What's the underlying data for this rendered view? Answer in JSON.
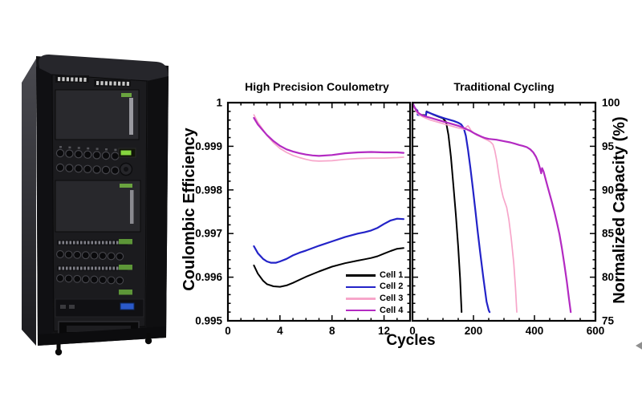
{
  "figure": {
    "background": "#ffffff",
    "shared_xlabel": "Cycles",
    "photo": {
      "name": "battery-cycler-rack-photo"
    }
  },
  "legend": {
    "position": "lower right of left chart"
  },
  "chart_data": [
    {
      "type": "line",
      "title": "High Precision Coulometry",
      "xlabel": "Cycles",
      "ylabel": "Coulombic Efficiency",
      "xlim": [
        0,
        14
      ],
      "ylim": [
        0.995,
        1.0
      ],
      "xticks": [
        0,
        4,
        8,
        12
      ],
      "xtick_labels": [
        "0",
        "4",
        "8",
        "12"
      ],
      "yticks": [
        0.995,
        0.996,
        0.997,
        0.998,
        0.999,
        1
      ],
      "ytick_labels": [
        "0.995",
        "0.996",
        "0.997",
        "0.998",
        "0.999",
        "1"
      ],
      "xminor": 1,
      "yminor": 0.0002,
      "grid": false,
      "y_label_side": "left",
      "legend_position": "lower right",
      "series": [
        {
          "name": "Cell 1",
          "color": "#000000",
          "lw": 2,
          "points": [
            [
              2,
              0.99627
            ],
            [
              2.3,
              0.99608
            ],
            [
              2.7,
              0.99592
            ],
            [
              3,
              0.99584
            ],
            [
              3.5,
              0.99579
            ],
            [
              4,
              0.99578
            ],
            [
              4.5,
              0.99581
            ],
            [
              5,
              0.99587
            ],
            [
              5.5,
              0.99594
            ],
            [
              6,
              0.99601
            ],
            [
              7,
              0.99613
            ],
            [
              8,
              0.99624
            ],
            [
              9,
              0.99632
            ],
            [
              10,
              0.99638
            ],
            [
              10.5,
              0.99641
            ],
            [
              11,
              0.99644
            ],
            [
              11.5,
              0.99648
            ],
            [
              12,
              0.99654
            ],
            [
              12.5,
              0.9966
            ],
            [
              13,
              0.99665
            ],
            [
              13.5,
              0.99667
            ]
          ]
        },
        {
          "name": "Cell 2",
          "color": "#2323c8",
          "lw": 2.2,
          "points": [
            [
              2,
              0.99671
            ],
            [
              2.3,
              0.99655
            ],
            [
              2.7,
              0.99642
            ],
            [
              3,
              0.99636
            ],
            [
              3.3,
              0.99633
            ],
            [
              3.7,
              0.99633
            ],
            [
              4,
              0.99636
            ],
            [
              4.5,
              0.99642
            ],
            [
              5,
              0.9965
            ],
            [
              5.5,
              0.99656
            ],
            [
              6,
              0.99661
            ],
            [
              7,
              0.99672
            ],
            [
              8,
              0.99682
            ],
            [
              9,
              0.99692
            ],
            [
              10,
              0.997
            ],
            [
              10.5,
              0.99703
            ],
            [
              11,
              0.99707
            ],
            [
              11.5,
              0.99713
            ],
            [
              12,
              0.99722
            ],
            [
              12.5,
              0.9973
            ],
            [
              13,
              0.99734
            ],
            [
              13.5,
              0.99733
            ]
          ]
        },
        {
          "name": "Cell 3",
          "color": "#f7a6ca",
          "lw": 1.7,
          "points": [
            [
              2,
              0.99972
            ],
            [
              2.3,
              0.99955
            ],
            [
              2.7,
              0.99938
            ],
            [
              3,
              0.99925
            ],
            [
              3.5,
              0.99908
            ],
            [
              4,
              0.99895
            ],
            [
              4.5,
              0.99886
            ],
            [
              5,
              0.99879
            ],
            [
              5.5,
              0.99874
            ],
            [
              6,
              0.9987
            ],
            [
              6.5,
              0.99867
            ],
            [
              7,
              0.99866
            ],
            [
              8,
              0.99867
            ],
            [
              9,
              0.9987
            ],
            [
              10,
              0.99872
            ],
            [
              11,
              0.99873
            ],
            [
              12,
              0.99873
            ],
            [
              13,
              0.99874
            ],
            [
              13.5,
              0.99875
            ]
          ]
        },
        {
          "name": "Cell 4",
          "color": "#b32ac2",
          "lw": 2.2,
          "points": [
            [
              2,
              0.99965
            ],
            [
              2.3,
              0.9995
            ],
            [
              2.7,
              0.99936
            ],
            [
              3,
              0.99926
            ],
            [
              3.5,
              0.99912
            ],
            [
              4,
              0.99901
            ],
            [
              4.5,
              0.99893
            ],
            [
              5,
              0.99888
            ],
            [
              5.5,
              0.99884
            ],
            [
              6,
              0.99881
            ],
            [
              6.5,
              0.99879
            ],
            [
              7,
              0.99878
            ],
            [
              8,
              0.9988
            ],
            [
              9,
              0.99884
            ],
            [
              10,
              0.99886
            ],
            [
              11,
              0.99887
            ],
            [
              12,
              0.99886
            ],
            [
              13,
              0.99886
            ],
            [
              13.5,
              0.99885
            ]
          ]
        }
      ]
    },
    {
      "type": "line",
      "title": "Traditional Cycling",
      "xlabel": "Cycles",
      "ylabel": "Normalized Capacity (%)",
      "xlim": [
        0,
        600
      ],
      "ylim": [
        75,
        100
      ],
      "xticks": [
        0,
        200,
        400,
        600
      ],
      "xtick_labels": [
        "0",
        "200",
        "400",
        "600"
      ],
      "yticks": [
        75,
        80,
        85,
        90,
        95,
        100
      ],
      "ytick_labels": [
        "75",
        "80",
        "85",
        "90",
        "95",
        "100"
      ],
      "xminor": 50,
      "yminor": 1,
      "grid": false,
      "y_label_side": "right",
      "legend_position": "none",
      "series": [
        {
          "name": "Cell 1",
          "color": "#000000",
          "lw": 2,
          "points": [
            [
              0,
              100
            ],
            [
              6,
              99.5
            ],
            [
              12,
              99.2
            ],
            [
              16,
              99.1
            ],
            [
              17,
              98.65
            ],
            [
              30,
              98.6
            ],
            [
              44,
              98.55
            ],
            [
              46,
              99
            ],
            [
              55,
              98.85
            ],
            [
              70,
              98.6
            ],
            [
              85,
              98.4
            ],
            [
              100,
              98.2
            ],
            [
              107,
              97.9
            ],
            [
              110,
              97.8
            ],
            [
              118,
              96.3
            ],
            [
              126,
              93.8
            ],
            [
              134,
              90.6
            ],
            [
              142,
              87.2
            ],
            [
              150,
              83.4
            ],
            [
              156,
              79.9
            ],
            [
              161,
              76
            ]
          ]
        },
        {
          "name": "Cell 2",
          "color": "#2323c8",
          "lw": 2.2,
          "points": [
            [
              0,
              100
            ],
            [
              6,
              99.5
            ],
            [
              12,
              99.2
            ],
            [
              16,
              99.1
            ],
            [
              17,
              98.6
            ],
            [
              30,
              98.55
            ],
            [
              44,
              98.5
            ],
            [
              46,
              98.95
            ],
            [
              58,
              98.8
            ],
            [
              72,
              98.6
            ],
            [
              88,
              98.4
            ],
            [
              105,
              98.2
            ],
            [
              120,
              98.05
            ],
            [
              135,
              97.9
            ],
            [
              150,
              97.7
            ],
            [
              160,
              97.5
            ],
            [
              168,
              97.1
            ],
            [
              175,
              96.2
            ],
            [
              182,
              94.6
            ],
            [
              190,
              92.5
            ],
            [
              198,
              90.2
            ],
            [
              206,
              87.7
            ],
            [
              214,
              85.2
            ],
            [
              222,
              82.8
            ],
            [
              232,
              80
            ],
            [
              243,
              77.2
            ],
            [
              250,
              76.2
            ],
            [
              253,
              76
            ]
          ]
        },
        {
          "name": "Cell 3",
          "color": "#f7a6ca",
          "lw": 1.7,
          "points": [
            [
              0,
              100
            ],
            [
              6,
              99.4
            ],
            [
              12,
              99
            ],
            [
              16,
              98.8
            ],
            [
              22,
              98.6
            ],
            [
              32,
              98.4
            ],
            [
              45,
              98.2
            ],
            [
              60,
              98
            ],
            [
              75,
              97.85
            ],
            [
              90,
              97.7
            ],
            [
              105,
              97.55
            ],
            [
              120,
              97.4
            ],
            [
              135,
              97.25
            ],
            [
              150,
              97.1
            ],
            [
              162,
              97
            ],
            [
              170,
              96.95
            ],
            [
              176,
              97.2
            ],
            [
              182,
              97.35
            ],
            [
              187,
              97.1
            ],
            [
              192,
              96.8
            ],
            [
              200,
              96.55
            ],
            [
              210,
              96.3
            ],
            [
              222,
              96.1
            ],
            [
              234,
              95.9
            ],
            [
              246,
              95.7
            ],
            [
              256,
              95.5
            ],
            [
              264,
              95.2
            ],
            [
              270,
              94.5
            ],
            [
              276,
              93.4
            ],
            [
              283,
              91.8
            ],
            [
              290,
              90.3
            ],
            [
              297,
              89.2
            ],
            [
              303,
              88.6
            ],
            [
              309,
              88
            ],
            [
              316,
              86.6
            ],
            [
              324,
              84.4
            ],
            [
              332,
              81.6
            ],
            [
              338,
              78.7
            ],
            [
              342,
              76
            ]
          ]
        },
        {
          "name": "Cell 4",
          "color": "#b32ac2",
          "lw": 2.2,
          "points": [
            [
              0,
              100
            ],
            [
              6,
              99.5
            ],
            [
              12,
              99.15
            ],
            [
              16,
              98.95
            ],
            [
              22,
              98.75
            ],
            [
              32,
              98.55
            ],
            [
              45,
              98.4
            ],
            [
              60,
              98.25
            ],
            [
              75,
              98.1
            ],
            [
              90,
              97.95
            ],
            [
              105,
              97.8
            ],
            [
              120,
              97.65
            ],
            [
              135,
              97.5
            ],
            [
              150,
              97.35
            ],
            [
              165,
              97.15
            ],
            [
              178,
              96.95
            ],
            [
              190,
              96.75
            ],
            [
              202,
              96.5
            ],
            [
              214,
              96.3
            ],
            [
              226,
              96.1
            ],
            [
              238,
              95.95
            ],
            [
              250,
              95.85
            ],
            [
              262,
              95.8
            ],
            [
              275,
              95.75
            ],
            [
              290,
              95.65
            ],
            [
              305,
              95.55
            ],
            [
              320,
              95.45
            ],
            [
              335,
              95.3
            ],
            [
              350,
              95.15
            ],
            [
              362,
              95.05
            ],
            [
              375,
              94.9
            ],
            [
              386,
              94.65
            ],
            [
              396,
              94.3
            ],
            [
              405,
              93.8
            ],
            [
              412,
              93.2
            ],
            [
              418,
              92.5
            ],
            [
              422,
              91.9
            ],
            [
              425,
              92.5
            ],
            [
              430,
              92.1
            ],
            [
              436,
              91.3
            ],
            [
              443,
              90.4
            ],
            [
              450,
              89.5
            ],
            [
              458,
              88.5
            ],
            [
              466,
              87.4
            ],
            [
              474,
              86.2
            ],
            [
              482,
              84.9
            ],
            [
              490,
              83.3
            ],
            [
              498,
              81.5
            ],
            [
              506,
              79.5
            ],
            [
              513,
              77.6
            ],
            [
              519,
              76
            ]
          ]
        }
      ]
    }
  ]
}
